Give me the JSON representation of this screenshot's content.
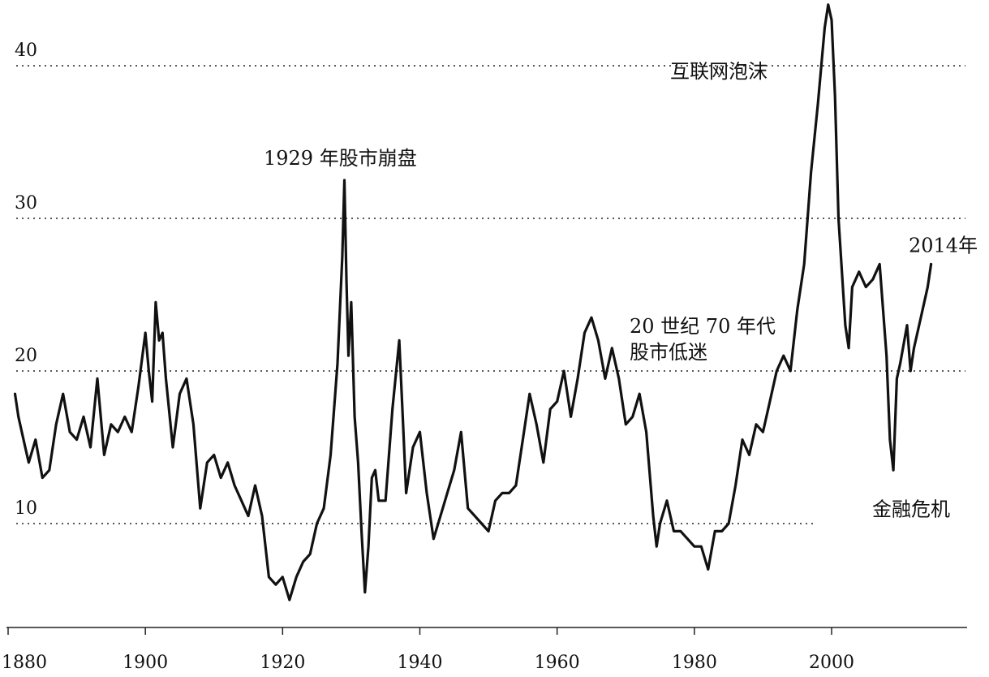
{
  "chart_data": {
    "type": "line",
    "title": "",
    "xlabel": "",
    "ylabel": "",
    "xlim": [
      1880,
      2015
    ],
    "ylim": [
      4,
      44
    ],
    "x_ticks": [
      1880,
      1900,
      1920,
      1940,
      1960,
      1980,
      2000
    ],
    "x_tick_labels": [
      "1880",
      "1900",
      "1920",
      "1940",
      "1960",
      "1980",
      "2000"
    ],
    "y_ticks": [
      10,
      20,
      30,
      40
    ],
    "y_tick_labels": [
      "10",
      "20",
      "30",
      "40"
    ],
    "grid": "horizontal dotted",
    "series": [
      {
        "name": "",
        "color": "#111111",
        "points": [
          [
            1881.0,
            18.5
          ],
          [
            1881.5,
            17.0
          ],
          [
            1882.5,
            15.0
          ],
          [
            1883.0,
            14.0
          ],
          [
            1884.0,
            15.5
          ],
          [
            1885.0,
            13.0
          ],
          [
            1886.0,
            13.5
          ],
          [
            1887.0,
            16.5
          ],
          [
            1888.0,
            18.5
          ],
          [
            1889.0,
            16.0
          ],
          [
            1890.0,
            15.5
          ],
          [
            1891.0,
            17.0
          ],
          [
            1892.0,
            15.0
          ],
          [
            1893.0,
            19.5
          ],
          [
            1894.0,
            14.5
          ],
          [
            1895.0,
            16.5
          ],
          [
            1896.0,
            16.0
          ],
          [
            1897.0,
            17.0
          ],
          [
            1898.0,
            16.0
          ],
          [
            1899.0,
            19.0
          ],
          [
            1900.0,
            22.5
          ],
          [
            1900.5,
            20.0
          ],
          [
            1901.0,
            18.0
          ],
          [
            1901.5,
            24.5
          ],
          [
            1902.0,
            22.0
          ],
          [
            1902.5,
            22.5
          ],
          [
            1903.0,
            19.5
          ],
          [
            1904.0,
            15.0
          ],
          [
            1905.0,
            18.5
          ],
          [
            1906.0,
            19.5
          ],
          [
            1907.0,
            16.5
          ],
          [
            1908.0,
            11.0
          ],
          [
            1909.0,
            14.0
          ],
          [
            1910.0,
            14.5
          ],
          [
            1911.0,
            13.0
          ],
          [
            1912.0,
            14.0
          ],
          [
            1913.0,
            12.5
          ],
          [
            1914.0,
            11.5
          ],
          [
            1915.0,
            10.5
          ],
          [
            1916.0,
            12.5
          ],
          [
            1917.0,
            10.5
          ],
          [
            1918.0,
            6.5
          ],
          [
            1919.0,
            6.0
          ],
          [
            1920.0,
            6.5
          ],
          [
            1921.0,
            5.0
          ],
          [
            1922.0,
            6.5
          ],
          [
            1923.0,
            7.5
          ],
          [
            1924.0,
            8.0
          ],
          [
            1925.0,
            10.0
          ],
          [
            1926.0,
            11.0
          ],
          [
            1927.0,
            14.5
          ],
          [
            1928.0,
            20.5
          ],
          [
            1928.7,
            27.5
          ],
          [
            1929.0,
            32.5
          ],
          [
            1929.3,
            26.0
          ],
          [
            1929.6,
            21.0
          ],
          [
            1930.0,
            24.5
          ],
          [
            1930.5,
            17.0
          ],
          [
            1931.0,
            14.0
          ],
          [
            1931.5,
            9.5
          ],
          [
            1932.0,
            5.5
          ],
          [
            1932.5,
            8.5
          ],
          [
            1933.0,
            13.0
          ],
          [
            1933.5,
            13.5
          ],
          [
            1934.0,
            11.5
          ],
          [
            1935.0,
            11.5
          ],
          [
            1936.0,
            17.5
          ],
          [
            1937.0,
            22.0
          ],
          [
            1937.5,
            17.0
          ],
          [
            1938.0,
            12.0
          ],
          [
            1939.0,
            15.0
          ],
          [
            1940.0,
            16.0
          ],
          [
            1941.0,
            12.0
          ],
          [
            1942.0,
            9.0
          ],
          [
            1943.0,
            10.5
          ],
          [
            1944.0,
            12.0
          ],
          [
            1945.0,
            13.5
          ],
          [
            1946.0,
            16.0
          ],
          [
            1947.0,
            11.0
          ],
          [
            1948.0,
            10.5
          ],
          [
            1949.0,
            10.0
          ],
          [
            1950.0,
            9.5
          ],
          [
            1951.0,
            11.5
          ],
          [
            1952.0,
            12.0
          ],
          [
            1953.0,
            12.0
          ],
          [
            1954.0,
            12.5
          ],
          [
            1955.0,
            15.5
          ],
          [
            1956.0,
            18.5
          ],
          [
            1957.0,
            16.5
          ],
          [
            1958.0,
            14.0
          ],
          [
            1959.0,
            17.5
          ],
          [
            1960.0,
            18.0
          ],
          [
            1961.0,
            20.0
          ],
          [
            1962.0,
            17.0
          ],
          [
            1963.0,
            19.5
          ],
          [
            1964.0,
            22.5
          ],
          [
            1965.0,
            23.5
          ],
          [
            1966.0,
            22.0
          ],
          [
            1967.0,
            19.5
          ],
          [
            1968.0,
            21.5
          ],
          [
            1969.0,
            19.5
          ],
          [
            1970.0,
            16.5
          ],
          [
            1971.0,
            17.0
          ],
          [
            1972.0,
            18.5
          ],
          [
            1973.0,
            16.0
          ],
          [
            1974.0,
            10.5
          ],
          [
            1974.5,
            8.5
          ],
          [
            1975.0,
            10.0
          ],
          [
            1976.0,
            11.5
          ],
          [
            1977.0,
            9.5
          ],
          [
            1978.0,
            9.5
          ],
          [
            1979.0,
            9.0
          ],
          [
            1980.0,
            8.5
          ],
          [
            1981.0,
            8.5
          ],
          [
            1982.0,
            7.0
          ],
          [
            1983.0,
            9.5
          ],
          [
            1984.0,
            9.5
          ],
          [
            1985.0,
            10.0
          ],
          [
            1986.0,
            12.5
          ],
          [
            1987.0,
            15.5
          ],
          [
            1988.0,
            14.5
          ],
          [
            1989.0,
            16.5
          ],
          [
            1990.0,
            16.0
          ],
          [
            1991.0,
            18.0
          ],
          [
            1992.0,
            20.0
          ],
          [
            1993.0,
            21.0
          ],
          [
            1994.0,
            20.0
          ],
          [
            1995.0,
            24.0
          ],
          [
            1996.0,
            27.0
          ],
          [
            1997.0,
            33.0
          ],
          [
            1998.0,
            37.5
          ],
          [
            1999.0,
            42.5
          ],
          [
            1999.5,
            44.0
          ],
          [
            2000.0,
            43.0
          ],
          [
            2000.5,
            38.0
          ],
          [
            2001.0,
            30.0
          ],
          [
            2002.0,
            23.0
          ],
          [
            2002.5,
            21.5
          ],
          [
            2003.0,
            25.5
          ],
          [
            2004.0,
            26.5
          ],
          [
            2005.0,
            25.5
          ],
          [
            2006.0,
            26.0
          ],
          [
            2007.0,
            27.0
          ],
          [
            2008.0,
            21.0
          ],
          [
            2008.5,
            15.5
          ],
          [
            2009.0,
            13.5
          ],
          [
            2009.5,
            19.5
          ],
          [
            2010.0,
            20.5
          ],
          [
            2011.0,
            23.0
          ],
          [
            2011.5,
            20.0
          ],
          [
            2012.0,
            21.5
          ],
          [
            2013.0,
            23.5
          ],
          [
            2014.0,
            25.5
          ],
          [
            2014.5,
            27.0
          ]
        ]
      }
    ],
    "annotations": [
      {
        "text": "1929 年股市崩盘",
        "x": 1929,
        "y": 33.5
      },
      {
        "text": "互联网泡沫",
        "x": 1993,
        "y": 39.2
      },
      {
        "text": "2014年",
        "x": 2014.5,
        "y": 27.8
      },
      {
        "text": "20 世纪 70 年代",
        "x": 1970,
        "y": 22.5
      },
      {
        "text": "股市低迷",
        "x": 1970,
        "y": 20.8
      },
      {
        "text": "金融危机",
        "x": 2008,
        "y": 10.5
      }
    ]
  }
}
